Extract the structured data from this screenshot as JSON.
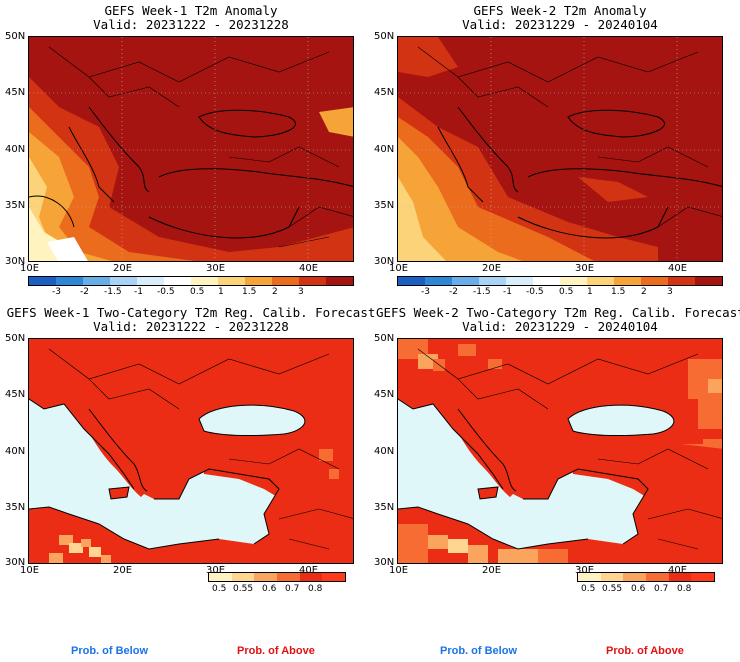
{
  "panels": [
    {
      "title": "GEFS Week-1 T2m Anomaly",
      "valid": "Valid: 20231222 - 20231228",
      "type": "anom"
    },
    {
      "title": "GEFS Week-2 T2m Anomaly",
      "valid": "Valid: 20231229 - 20240104",
      "type": "anom"
    },
    {
      "title": "GEFS Week-1 Two-Category T2m Reg. Calib. Forecast",
      "valid": "Valid: 20231222 - 20231228",
      "type": "prob"
    },
    {
      "title": "GEFS Week-2 Two-Category T2m Reg. Calib. Forecast",
      "valid": "Valid: 20231229 - 20240104",
      "type": "prob"
    }
  ],
  "lat_labels": [
    "50N",
    "45N",
    "40N",
    "35N",
    "30N"
  ],
  "lon_labels": [
    "10E",
    "20E",
    "30E",
    "40E"
  ],
  "anom_colorbar": {
    "labels": [
      "-3",
      "-2",
      "-1.5",
      "-1",
      "-0.5",
      "0.5",
      "1",
      "1.5",
      "2",
      "3"
    ],
    "colors": [
      "#1c5fc2",
      "#2e86d6",
      "#67aee8",
      "#a8d3f5",
      "#d8eefb",
      "#ffffff",
      "#fff3c0",
      "#fdd379",
      "#f6a437",
      "#ea6c1c",
      "#d23413",
      "#a51410"
    ]
  },
  "prob_colorbar": {
    "labels": [
      "0.5",
      "0.55",
      "0.6",
      "0.7",
      "0.8"
    ],
    "colors": [
      "#fff2c2",
      "#ffd592",
      "#fba45e",
      "#f66c32",
      "#ea2d14",
      "#ff3a1a"
    ]
  },
  "footer": {
    "below": "Prob. of Below",
    "above": "Prob. of Above"
  },
  "colors": {
    "below": "#1a73e8",
    "above": "#e01212",
    "sea": "#e0f7fa",
    "ocean_anom": "#d8eefb"
  }
}
